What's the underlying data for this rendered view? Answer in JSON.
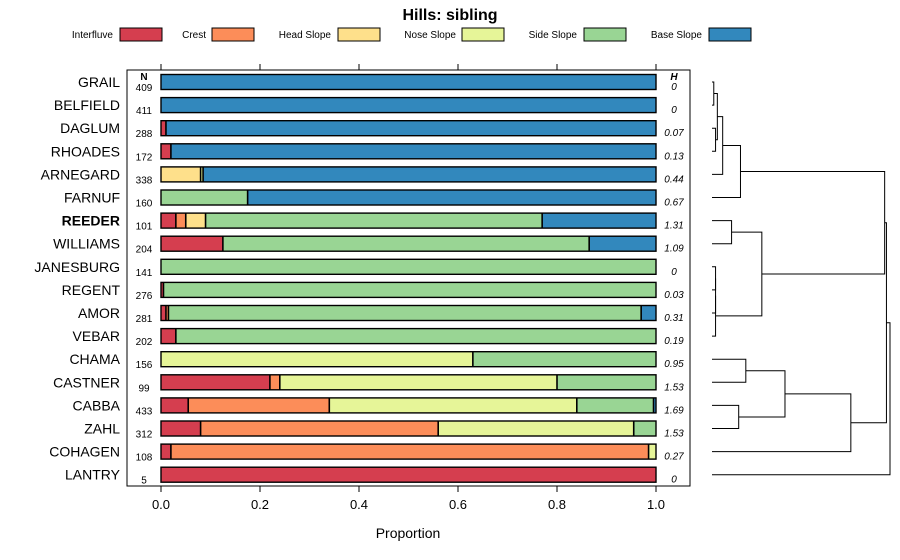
{
  "chart_data": {
    "type": "bar",
    "orientation": "horizontal-stacked",
    "title": "Hills: sibling",
    "xlabel": "Proportion",
    "ylabel": "",
    "xlim": [
      0,
      1
    ],
    "xticks": [
      "0.0",
      "0.2",
      "0.4",
      "0.6",
      "0.8",
      "1.0"
    ],
    "n_header": "N",
    "h_header": "H",
    "series_names": [
      "Interfluve",
      "Crest",
      "Head Slope",
      "Nose Slope",
      "Side Slope",
      "Base Slope"
    ],
    "colors": [
      "#D53E4F",
      "#FC8D59",
      "#FEE08B",
      "#E6F598",
      "#99D594",
      "#3288BD"
    ],
    "highlight": "REEDER",
    "categories": [
      "GRAIL",
      "BELFIELD",
      "DAGLUM",
      "RHOADES",
      "ARNEGARD",
      "FARNUF",
      "REEDER",
      "WILLIAMS",
      "JANESBURG",
      "REGENT",
      "AMOR",
      "VEBAR",
      "CHAMA",
      "CASTNER",
      "CABBA",
      "ZAHL",
      "COHAGEN",
      "LANTRY"
    ],
    "n": [
      "409",
      "411",
      "288",
      "172",
      "338",
      "160",
      "101",
      "204",
      "141",
      "276",
      "281",
      "202",
      "156",
      "99",
      "433",
      "312",
      "108",
      "5"
    ],
    "h": [
      "0",
      "0",
      "0.07",
      "0.13",
      "0.44",
      "0.67",
      "1.31",
      "1.09",
      "0",
      "0.03",
      "0.31",
      "0.19",
      "0.95",
      "1.53",
      "1.69",
      "1.53",
      "0.27",
      "0"
    ],
    "values": [
      [
        0,
        0,
        0,
        0,
        0,
        1
      ],
      [
        0,
        0,
        0,
        0,
        0,
        1
      ],
      [
        0.01,
        0,
        0,
        0,
        0,
        0.99
      ],
      [
        0.02,
        0,
        0,
        0,
        0,
        0.98
      ],
      [
        0,
        0,
        0.08,
        0.005,
        0,
        0.915
      ],
      [
        0,
        0,
        0,
        0,
        0.175,
        0.825
      ],
      [
        0.03,
        0.02,
        0.04,
        0,
        0.68,
        0.23
      ],
      [
        0.125,
        0,
        0,
        0,
        0.74,
        0.135
      ],
      [
        0,
        0,
        0,
        0,
        1,
        0
      ],
      [
        0.005,
        0,
        0,
        0,
        0.995,
        0
      ],
      [
        0.01,
        0.005,
        0,
        0,
        0.955,
        0.03
      ],
      [
        0.03,
        0,
        0,
        0,
        0.97,
        0
      ],
      [
        0,
        0,
        0,
        0.63,
        0.37,
        0
      ],
      [
        0.22,
        0.02,
        0,
        0.56,
        0.2,
        0
      ],
      [
        0.055,
        0.285,
        0,
        0.5,
        0.155,
        0.005
      ],
      [
        0.08,
        0.48,
        0,
        0.395,
        0.045,
        0
      ],
      [
        0.02,
        0.965,
        0,
        0.015,
        0,
        0
      ],
      [
        1,
        0,
        0,
        0,
        0,
        0
      ]
    ],
    "dendrogram": {
      "type": "tree",
      "order": [
        "GRAIL",
        "BELFIELD",
        "DAGLUM",
        "RHOADES",
        "ARNEGARD",
        "FARNUF",
        "REEDER",
        "WILLIAMS",
        "JANESBURG",
        "REGENT",
        "AMOR",
        "VEBAR",
        "CHAMA",
        "CASTNER",
        "CABBA",
        "ZAHL",
        "COHAGEN",
        "LANTRY"
      ],
      "merges": [
        [
          0,
          1,
          0.01
        ],
        [
          2,
          3,
          0.02
        ],
        [
          -1,
          -2,
          0.03
        ],
        [
          -3,
          4,
          0.06
        ],
        [
          -4,
          5,
          0.16
        ],
        [
          6,
          7,
          0.11
        ],
        [
          8,
          9,
          0.02
        ],
        [
          -7,
          10,
          0.02
        ],
        [
          -8,
          11,
          0.02
        ],
        [
          -6,
          -9,
          0.28
        ],
        [
          -5,
          -10,
          0.97
        ],
        [
          12,
          13,
          0.19
        ],
        [
          14,
          15,
          0.15
        ],
        [
          -12,
          -13,
          0.41
        ],
        [
          -14,
          16,
          0.78
        ],
        [
          -11,
          -15,
          0.98
        ],
        [
          -16,
          17,
          1.0
        ]
      ]
    }
  }
}
